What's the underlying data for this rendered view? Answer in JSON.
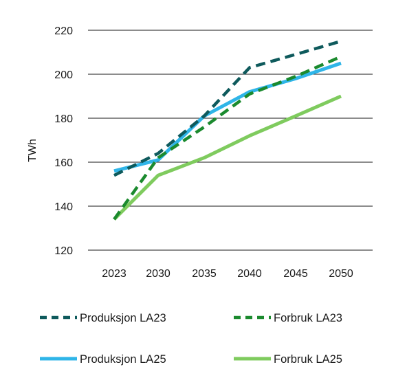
{
  "chart_data": {
    "type": "line",
    "ylabel": "TWh",
    "xlabel": "",
    "ylim": [
      120,
      220
    ],
    "yticks": [
      120,
      140,
      160,
      180,
      200,
      220
    ],
    "categories": [
      "2023",
      "2030",
      "2035",
      "2040",
      "2045",
      "2050"
    ],
    "grid": "horizontal",
    "legend_position": "bottom",
    "series": [
      {
        "name": "Produksjon LA23",
        "color": "#0e5a5c",
        "style": "dashed",
        "values": [
          154,
          164,
          181,
          203,
          209,
          215
        ]
      },
      {
        "name": "Forbruk LA23",
        "color": "#1b8a2e",
        "style": "dashed",
        "values": [
          134,
          162,
          176,
          191,
          199,
          208
        ]
      },
      {
        "name": "Produksjon LA25",
        "color": "#2fb5e8",
        "style": "solid",
        "values": [
          156,
          161,
          181,
          192,
          198,
          205
        ]
      },
      {
        "name": "Forbruk LA25",
        "color": "#7fcb5e",
        "style": "solid",
        "values": [
          134,
          154,
          162,
          172,
          181,
          190
        ]
      }
    ]
  }
}
